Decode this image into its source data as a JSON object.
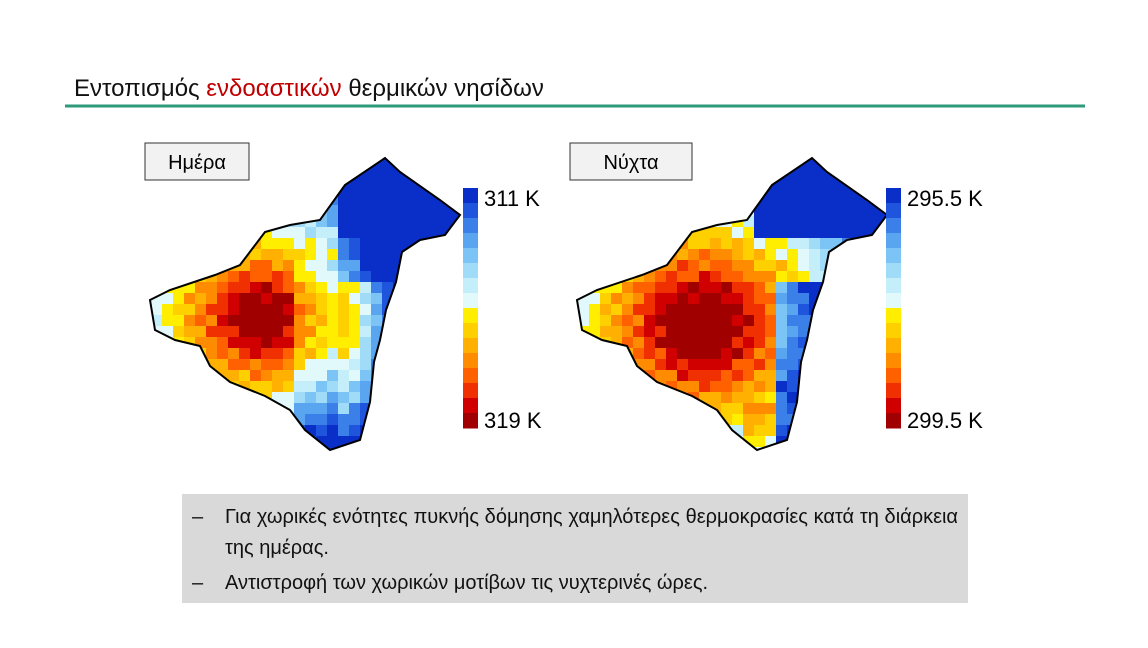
{
  "header": {
    "title": {
      "prefix": "Εντοπισμός",
      "highlight": "ενδοαστικών",
      "suffix": "θερμικών νησίδων"
    }
  },
  "panels": [
    {
      "label": "Ημέρα",
      "scale_top": "311 K",
      "scale_bottom": "319 K"
    },
    {
      "label": "Νύχτα",
      "scale_top": "295.5 K",
      "scale_bottom": "299.5 K"
    }
  ],
  "bullets": [
    "Για χωρικές ενότητες πυκνής δόμησης χαμηλότερες θερμοκρασίες κατά τη διάρκεια της ημέρας.",
    "Αντιστροφή των χωρικών μοτίβων τις νυχτερινές ώρες."
  ]
}
